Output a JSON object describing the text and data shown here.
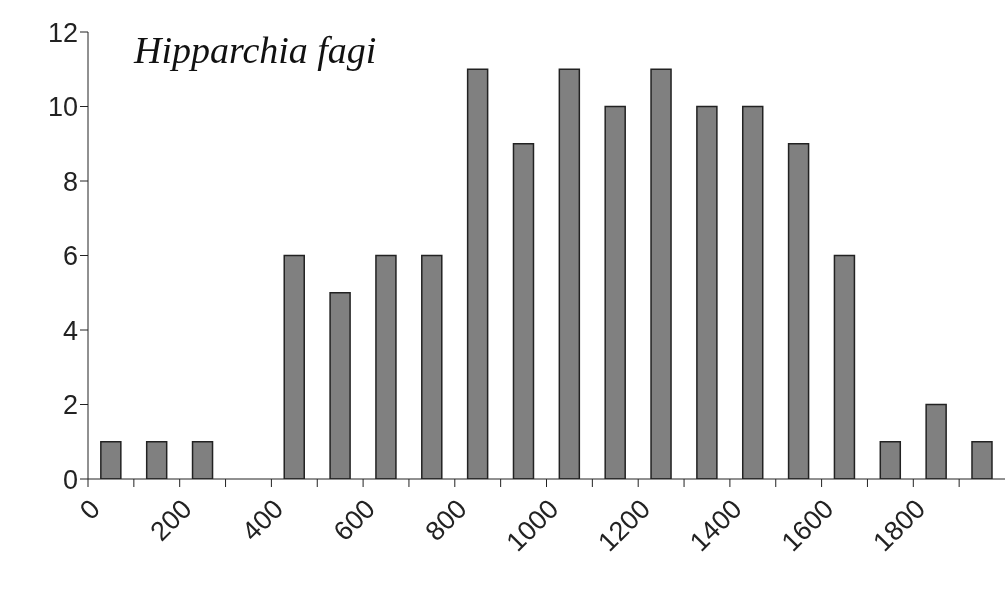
{
  "chart_data": {
    "type": "histogram",
    "title": "Hipparchia fagi",
    "bins": [
      0,
      100,
      200,
      300,
      400,
      500,
      600,
      700,
      800,
      900,
      1000,
      1100,
      1200,
      1300,
      1400,
      1500,
      1600,
      1700,
      1800,
      1900,
      2000
    ],
    "values": [
      1,
      1,
      1,
      0,
      6,
      5,
      6,
      6,
      11,
      9,
      11,
      10,
      11,
      10,
      10,
      9,
      6,
      1,
      2,
      1
    ],
    "color": "#808080",
    "xlim": [
      0,
      2000
    ],
    "xticks": [
      0,
      {
        "value": 100,
        "label": null
      },
      200,
      {
        "value": 300,
        "label": null
      },
      400,
      {
        "value": 500,
        "label": null
      },
      600,
      {
        "value": 700,
        "label": null
      },
      800,
      {
        "value": 900,
        "label": null
      },
      1000,
      {
        "value": 1100,
        "label": null
      },
      1200,
      {
        "value": 1300,
        "label": null
      },
      1400,
      {
        "value": 1500,
        "label": null
      },
      1600,
      {
        "value": 1700,
        "label": null
      },
      1800,
      {
        "value": 1900,
        "label": null
      }
    ],
    "ylim": [
      0,
      12
    ],
    "yticks": [
      0,
      2,
      4,
      6,
      8,
      10,
      12
    ],
    "grid": false,
    "legend": false
  }
}
